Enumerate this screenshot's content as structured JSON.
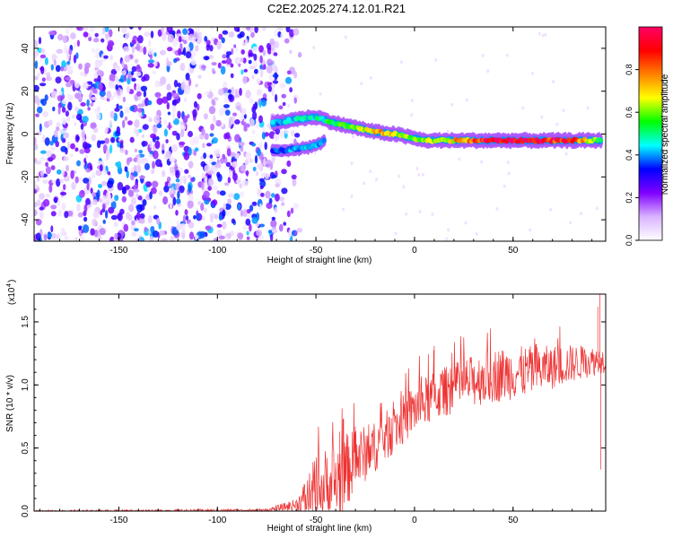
{
  "title": "C2E2.2025.274.12.01.R21",
  "chart_data": [
    {
      "type": "heatmap",
      "title": "C2E2.2025.274.12.01.R21",
      "xlabel": "Height of straight line (km)",
      "ylabel": "Frequency (Hz)",
      "xlim": [
        -193,
        97
      ],
      "ylim": [
        -50,
        50
      ],
      "xticks": [
        -150,
        -100,
        -50,
        0,
        50
      ],
      "yticks": [
        -40,
        -20,
        0,
        20,
        40
      ],
      "colorbar": {
        "label": "Normalized spectral amplitude",
        "range": [
          0,
          1
        ],
        "ticks": [
          0.0,
          0.2,
          0.4,
          0.6,
          0.8
        ],
        "colormap": [
          "#ffffff",
          "#d9b3ff",
          "#8000ff",
          "#0000ff",
          "#00ffff",
          "#00ff00",
          "#ffff00",
          "#ff8000",
          "#ff0000",
          "#ff0066"
        ]
      },
      "features": {
        "noise_region_x": [
          -193,
          -70
        ],
        "signal_ridge": [
          {
            "x": -72,
            "y": 5,
            "amp": 0.4
          },
          {
            "x": -60,
            "y": 7,
            "amp": 0.45
          },
          {
            "x": -50,
            "y": 8,
            "amp": 0.45
          },
          {
            "x": -40,
            "y": 5,
            "amp": 0.55
          },
          {
            "x": -30,
            "y": 3,
            "amp": 0.55
          },
          {
            "x": -20,
            "y": 1,
            "amp": 0.75
          },
          {
            "x": -10,
            "y": 0,
            "amp": 0.65
          },
          {
            "x": 0,
            "y": -2,
            "amp": 0.55
          },
          {
            "x": 5,
            "y": -3,
            "amp": 0.6
          },
          {
            "x": 20,
            "y": -3,
            "amp": 0.7
          },
          {
            "x": 40,
            "y": -3,
            "amp": 0.95
          },
          {
            "x": 60,
            "y": -3,
            "amp": 0.95
          },
          {
            "x": 80,
            "y": -3,
            "amp": 0.85
          },
          {
            "x": 95,
            "y": -3,
            "amp": 0.5
          }
        ],
        "secondary_ridge": [
          {
            "x": -72,
            "y": -8,
            "amp": 0.35
          },
          {
            "x": -60,
            "y": -7,
            "amp": 0.4
          },
          {
            "x": -52,
            "y": -6,
            "amp": 0.45
          },
          {
            "x": -45,
            "y": -3,
            "amp": 0.4
          }
        ]
      }
    },
    {
      "type": "line",
      "xlabel": "Height of straight line (km)",
      "ylabel": "SNR (10 * v/v)",
      "yscale_note": "(x10^4)",
      "xlim": [
        -193,
        97
      ],
      "ylim": [
        0,
        1.72
      ],
      "xticks": [
        -150,
        -100,
        -50,
        0,
        50
      ],
      "yticks": [
        0.0,
        0.5,
        1.0,
        1.5
      ],
      "series": [
        {
          "color": "#ee3333",
          "envelope": [
            {
              "x": -193,
              "base": 0.0,
              "noise": 0.01
            },
            {
              "x": -75,
              "base": 0.01,
              "noise": 0.01
            },
            {
              "x": -60,
              "base": 0.06,
              "noise": 0.05
            },
            {
              "x": -50,
              "base": 0.2,
              "noise": 0.3
            },
            {
              "x": -40,
              "base": 0.3,
              "noise": 0.35
            },
            {
              "x": -30,
              "base": 0.45,
              "noise": 0.25
            },
            {
              "x": -20,
              "base": 0.55,
              "noise": 0.2
            },
            {
              "x": -10,
              "base": 0.7,
              "noise": 0.2
            },
            {
              "x": 0,
              "base": 0.85,
              "noise": 0.2
            },
            {
              "x": 10,
              "base": 0.95,
              "noise": 0.2
            },
            {
              "x": 25,
              "base": 1.05,
              "noise": 0.2
            },
            {
              "x": 40,
              "base": 1.12,
              "noise": 0.22
            },
            {
              "x": 60,
              "base": 1.15,
              "noise": 0.2
            },
            {
              "x": 80,
              "base": 1.2,
              "noise": 0.15
            },
            {
              "x": 97,
              "base": 1.22,
              "noise": 0.1
            }
          ],
          "spikes": [
            {
              "x": 10,
              "y": 1.31
            },
            {
              "x": 93,
              "y": 1.62
            },
            {
              "x": 94,
              "y": 1.72
            },
            {
              "x": 94.5,
              "y": 0.33
            },
            {
              "x": -38,
              "y": 0.63
            },
            {
              "x": -30,
              "y": 0.67
            }
          ]
        }
      ]
    }
  ]
}
